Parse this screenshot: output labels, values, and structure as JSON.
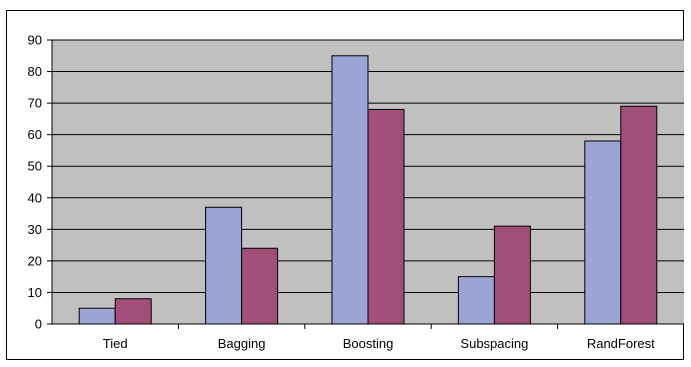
{
  "chart_data": {
    "type": "bar",
    "title": "",
    "xlabel": "",
    "ylabel": "",
    "categories": [
      "Tied",
      "Bagging",
      "Boosting",
      "Subspacing",
      "RandForest"
    ],
    "series": [
      {
        "values": [
          5,
          37,
          85,
          15,
          58
        ],
        "color": "#9aa5d6"
      },
      {
        "values": [
          8,
          24,
          68,
          31,
          69
        ],
        "color": "#a14f78"
      }
    ],
    "ylim": [
      0,
      90
    ],
    "yticks": [
      "0",
      "10",
      "20",
      "30",
      "40",
      "50",
      "60",
      "70",
      "80",
      "90"
    ],
    "grid": true,
    "legend": "none",
    "plot_background": "#c0c0c0"
  }
}
